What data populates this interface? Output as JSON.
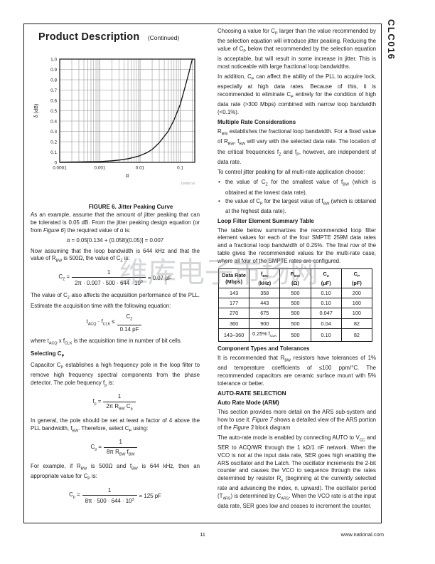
{
  "sidebar": {
    "part_number": "CLC016"
  },
  "header": {
    "title": "Product Description",
    "continued": "(Continued)"
  },
  "figure6": {
    "caption": "FIGURE 6. Jitter Peaking Curve",
    "code": "10008718"
  },
  "chart_data": {
    "type": "line",
    "title": "Jitter Peaking Curve",
    "xlabel": "α",
    "ylabel": "δ (dB)",
    "x_scale": "log",
    "xlim": [
      0.0001,
      0.23
    ],
    "ylim": [
      0,
      1.0
    ],
    "x_ticks": [
      0.0001,
      0.001,
      0.01,
      0.1
    ],
    "x_tick_labels": [
      "0.0001",
      "0.001",
      "0.01",
      "0.1"
    ],
    "y_ticks": [
      0,
      0.1,
      0.2,
      0.3,
      0.4,
      0.5,
      0.6,
      0.7,
      0.8,
      0.9,
      1.0
    ],
    "grid": true,
    "legend": "none",
    "series": [
      {
        "name": "jitter peaking δ vs α",
        "points": [
          [
            0.0001,
            0.002
          ],
          [
            0.0003,
            0.004
          ],
          [
            0.001,
            0.008
          ],
          [
            0.002,
            0.015
          ],
          [
            0.003,
            0.022
          ],
          [
            0.005,
            0.035
          ],
          [
            0.007,
            0.048
          ],
          [
            0.01,
            0.065
          ],
          [
            0.015,
            0.095
          ],
          [
            0.02,
            0.125
          ],
          [
            0.03,
            0.19
          ],
          [
            0.05,
            0.3
          ],
          [
            0.07,
            0.41
          ],
          [
            0.1,
            0.56
          ],
          [
            0.13,
            0.72
          ],
          [
            0.16,
            0.85
          ],
          [
            0.2,
            1.0
          ]
        ]
      }
    ]
  },
  "left_column": {
    "para_example": "As an example, assume that the amount of jitter peaking that can be tolerated is 0.05 dB. From the jitter peaking design equation (or from <i>Figure 6</i>) the required value of α is:",
    "eq_alpha": "α = 0.05[0.134 + (0.058)(0.05)] = 0.007",
    "para_loop_bw": "Now assuming that the loop bandwidth is 644 kHz and that the value of R<sub>BW</sub> is 500Ω, the value of C<sub>Z</sub> is:",
    "eq_cz": {
      "lhs": "C<sub>Z</sub>&nbsp;=",
      "num": "1",
      "den": "2π · 0.007 · 500 · 644 · 10<sup>3</sup>",
      "rhs": "=&nbsp;0.07 μF"
    },
    "para_cz_acquisition": "The value of C<sub>Z</sub> also affects the acquisition performance of the PLL. Estimate the acquisition time with the following equation:",
    "eq_tacq": {
      "lhs": "t<sub>ACQ</sub> · f<sub>CLK</sub> ≤",
      "num": "C<sub>Z</sub>",
      "den": "0.14 pF",
      "rhs": ""
    },
    "para_where": "where t<sub>ACQ</sub> x f<sub>CLK</sub> is the acquisition time in number of bit cells.",
    "heading_selecting_cp": "Selecting C<sub>P</sub>",
    "para_cp_pole": "Capacitor C<sub>P</sub> establishes a high frequency pole in the loop filter to remove high frequency spectral components from the phase detector. The pole frequency f<sub>p</sub> is:",
    "eq_fp": {
      "lhs": "f<sub>p</sub>&nbsp;=",
      "num": "1",
      "den": "2π R<sub>BW</sub> C<sub>p</sub>",
      "rhs": ""
    },
    "para_in_general": "In general, the pole should be set at least a factor of 4 above the PLL bandwidth, f<sub>BW</sub>. Therefore, select C<sub>P</sub> using:",
    "eq_cp_rule": {
      "lhs": "C<sub>p</sub>&nbsp;=",
      "num": "1",
      "den": "8π R<sub>BW</sub> f<sub>BW</sub>",
      "rhs": ""
    },
    "para_for_example": "For example, if R<sub>BW</sub> is 500Ω and f<sub>BW</sub> is 644 kHz, then an appropriate value for C<sub>P</sub> is:",
    "eq_cp_value": {
      "lhs": "C<sub>p</sub>&nbsp;=",
      "num": "1",
      "den": "8π · 500 · 644 · 10<sup>3</sup>",
      "rhs": "=&nbsp;125 pF"
    }
  },
  "right_column": {
    "para_choosing": "Choosing a value for C<sub>P</sub> larger than the value recommended by the selection equation will introduce jitter peaking. Reducing the value of C<sub>P</sub> below that recommended by the selection equation is acceptable, but will result in some increase in jitter. This is most noticeable with large fractional loop bandwidths.",
    "para_in_addition": "In addition, C<sub>P</sub> can affect the ability of the PLL to acquire lock, especially at high data rates. Because of this, it is recommended to eliminate C<sub>P</sub> entirely for the condition of high data rate (&gt;300 Mbps) combined with narrow loop bandwidth (&lt;0.1%).",
    "heading_multi_rate": "Multiple Rate Considerations",
    "para_rbw": "R<sub>BW</sub> establishes the fractional loop bandwidth. For a fixed value of R<sub>BW</sub>, f<sub>BW</sub> will vary with the selected data rate. The location of the critical frequencies f<sub>Z</sub> and f<sub>P</sub>, however, are independent of data rate.",
    "para_to_control": "To control jitter peaking for all multi-rate application choose:",
    "bullets": [
      "the value of C<sub>Z</sub> for the smallest value of f<sub>BW</sub> (which is obtained at the lowest data rate).",
      "the value of C<sub>P</sub> for the largest value of f<sub>BW</sub> (which is obtained at the highest data rate)."
    ],
    "heading_loop_filter": "Loop Filter Element Summary Table",
    "para_table_intro": "The table below summarizes the recommended loop filter element values for each of the four SMPTE 259M data rates and a fractional loop bandwidth of 0.25%. The final row of the table gives the recommended values for the multi-rate case, where all four of the SMPTE rates are configured.",
    "heading_tolerances": "Component Types and Tolerances",
    "para_tolerances": "It is recommended that R<sub>BW</sub> resistors have tolerances of 1% and temperature coefficients of ≤100 ppm/°C. The recommended capacitors are ceramic surface mount with 5% tolerance or better.",
    "heading_auto_rate": "AUTO-RATE SELECTION",
    "heading_arm": "Auto Rate Mode (ARM)",
    "para_ars_intro": "This section provides more detail on the ARS sub-system and how to use it. <i>Figure 7</i> shows a detailed view of the ARS portion of the <i>Figure 3</i> block diagram",
    "para_ars_detail": "The auto-rate mode is enabled by connecting AUTO to V<sub>CC</sub> and SER to ACQ/WR through the 1 kΩ/1 nF network. When the VCO is not at the input data rate, SER goes high enabling the ARS oscillator and the Latch. The oscillator increments the 2-bit counter and causes the VCO to sequence through the rates determined by resistor R<sub>n</sub> (beginning at the currently selected rate and advancing the index, n, upward). The oscillator period (T<sub>ARS</sub>) is determined by C<sub>ARS</sub>. When the VCO rate is at the input data rate, SER goes low and ceases to increment the counter."
  },
  "table": {
    "headers": [
      {
        "name": "Data Rate",
        "unit": "(Mbps)"
      },
      {
        "name": "f<sub>BW</sub>",
        "unit": "(kHz)"
      },
      {
        "name": "R<sub>BW</sub>",
        "unit": "(Ω)"
      },
      {
        "name": "C<sub>Z</sub>",
        "unit": "(μF)"
      },
      {
        "name": "C<sub>P</sub>",
        "unit": "(pF)"
      }
    ],
    "rows": [
      [
        "143",
        "358",
        "500",
        "0.10",
        "200"
      ],
      [
        "177",
        "443",
        "500",
        "0.10",
        "160"
      ],
      [
        "270",
        "675",
        "500",
        "0.047",
        "100"
      ],
      [
        "360",
        "900",
        "500",
        "0.04",
        "82"
      ],
      [
        "143–360",
        "0.25% f<sub>CLK</sub>",
        "500",
        "0.10",
        "82"
      ]
    ]
  },
  "watermark": "维库电子市场网",
  "footer": {
    "page_number": "11",
    "website": "www.national.com"
  }
}
